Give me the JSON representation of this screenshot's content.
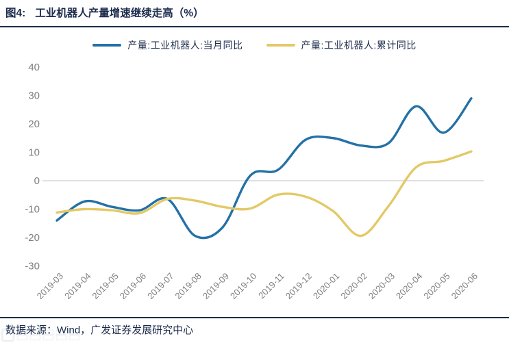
{
  "header": {
    "figure_label": "图4:",
    "title": "工业机器人产量增速继续走高（%）"
  },
  "footer": {
    "source": "数据来源：Wind，广发证券发展研究中心"
  },
  "colors": {
    "navy": "#1B2B4B",
    "blue": "#2471A6",
    "yellow": "#E3C967",
    "axis_text": "#7F7F7F",
    "zero_line": "#D6D6D6"
  },
  "chart_data": {
    "type": "line",
    "title": "工业机器人产量增速继续走高（%）",
    "categories": [
      "2019-03",
      "2019-04",
      "2019-05",
      "2019-06",
      "2019-07",
      "2019-08",
      "2019-09",
      "2019-10",
      "2019-11",
      "2019-12",
      "2020-01",
      "2020-02",
      "2020-03",
      "2020-04",
      "2020-05",
      "2020-06"
    ],
    "series": [
      {
        "name": "产量:工业机器人:当月同比",
        "color_key": "blue",
        "values": [
          -14.0,
          -7.3,
          -9.2,
          -10.4,
          -6.4,
          -19.4,
          -16.4,
          1.8,
          3.8,
          14.4,
          15.0,
          12.4,
          13.2,
          26.2,
          16.9,
          29.0
        ]
      },
      {
        "name": "产量:工业机器人:累计同比",
        "color_key": "yellow",
        "values": [
          -11.2,
          -10.0,
          -10.4,
          -11.4,
          -6.4,
          -7.0,
          -9.2,
          -9.8,
          -4.9,
          -5.6,
          -10.7,
          -19.4,
          -9.0,
          4.7,
          7.0,
          10.3
        ]
      }
    ],
    "yticks": [
      40,
      30,
      20,
      10,
      0,
      -10,
      -20,
      -30
    ],
    "ylim": [
      -30,
      40
    ],
    "grid": "zero-baseline-only",
    "legend_position": "top-center",
    "xlabel": "",
    "ylabel": ""
  }
}
